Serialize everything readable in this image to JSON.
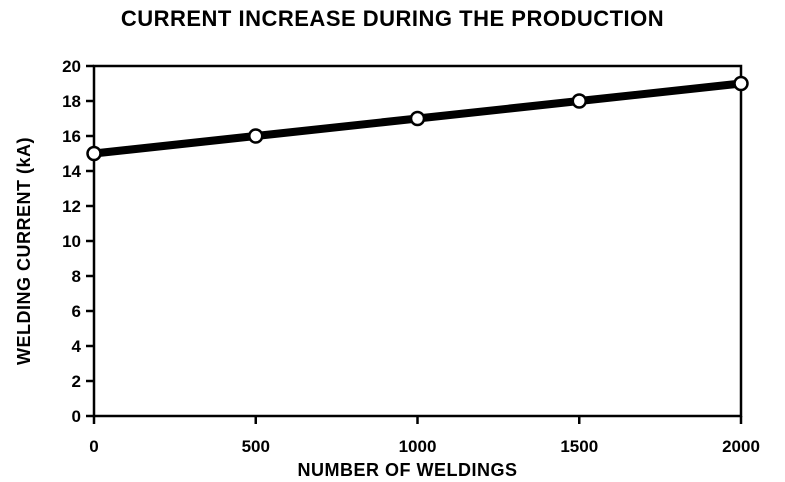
{
  "chart_data": {
    "type": "line",
    "title": "CURRENT INCREASE DURING THE PRODUCTION",
    "xlabel": "NUMBER OF WELDINGS",
    "ylabel": "WELDING CURRENT (kA)",
    "x": [
      0,
      500,
      1000,
      1500,
      2000
    ],
    "series": [
      {
        "values": [
          15,
          16,
          17,
          18,
          19
        ]
      }
    ],
    "xlim": [
      0,
      2000
    ],
    "ylim": [
      0,
      20
    ],
    "xticks": [
      0,
      500,
      1000,
      1500,
      2000
    ],
    "yticks": [
      0,
      2,
      4,
      6,
      8,
      10,
      12,
      14,
      16,
      18,
      20
    ],
    "grid": false,
    "line_color": "#000000",
    "marker_fill": "#ffffff"
  }
}
